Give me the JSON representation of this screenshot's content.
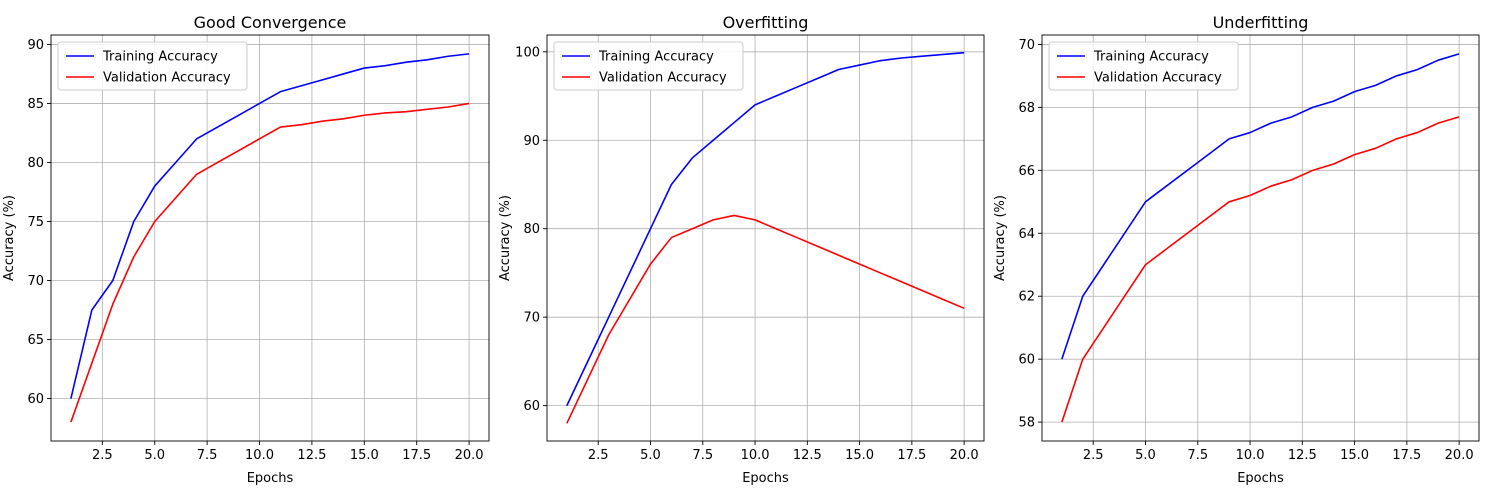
{
  "chart_data": [
    {
      "type": "line",
      "title": "Good Convergence",
      "xlabel": "Epochs",
      "ylabel": "Accuracy (%)",
      "x": [
        1,
        2,
        3,
        4,
        5,
        6,
        7,
        8,
        9,
        10,
        11,
        12,
        13,
        14,
        15,
        16,
        17,
        18,
        19,
        20
      ],
      "series": [
        {
          "name": "Training Accuracy",
          "color": "#0000ff",
          "values": [
            60,
            67.5,
            70,
            75,
            78,
            80,
            82,
            83,
            84,
            85,
            86,
            86.5,
            87,
            87.5,
            88,
            88.2,
            88.5,
            88.7,
            89,
            89.2
          ]
        },
        {
          "name": "Validation Accuracy",
          "color": "#ff0000",
          "values": [
            58,
            63,
            68,
            72,
            75,
            77,
            79,
            80,
            81,
            82,
            83,
            83.2,
            83.5,
            83.7,
            84,
            84.2,
            84.3,
            84.5,
            84.7,
            85
          ]
        }
      ],
      "xlim": [
        0.05,
        20.95
      ],
      "ylim": [
        56.4,
        90.8
      ],
      "xticks": [
        2.5,
        5.0,
        7.5,
        10.0,
        12.5,
        15.0,
        17.5,
        20.0
      ],
      "xtick_labels": [
        "2.5",
        "5.0",
        "7.5",
        "10.0",
        "12.5",
        "15.0",
        "17.5",
        "20.0"
      ],
      "yticks": [
        60,
        65,
        70,
        75,
        80,
        85,
        90
      ],
      "ytick_labels": [
        "60",
        "65",
        "70",
        "75",
        "80",
        "85",
        "90"
      ],
      "grid": true,
      "legend": "upper-left"
    },
    {
      "type": "line",
      "title": "Overfitting",
      "xlabel": "Epochs",
      "ylabel": "Accuracy (%)",
      "x": [
        1,
        2,
        3,
        4,
        5,
        6,
        7,
        8,
        9,
        10,
        11,
        12,
        13,
        14,
        15,
        16,
        17,
        18,
        19,
        20
      ],
      "series": [
        {
          "name": "Training Accuracy",
          "color": "#0000ff",
          "values": [
            60,
            65,
            70,
            75,
            80,
            85,
            88,
            90,
            92,
            94,
            95,
            96,
            97,
            98,
            98.5,
            99,
            99.3,
            99.5,
            99.7,
            99.9
          ]
        },
        {
          "name": "Validation Accuracy",
          "color": "#ff0000",
          "values": [
            58,
            63,
            68,
            72,
            76,
            79,
            80,
            81,
            81.5,
            81,
            80,
            79,
            78,
            77,
            76,
            75,
            74,
            73,
            72,
            71
          ]
        }
      ],
      "xlim": [
        0.05,
        20.95
      ],
      "ylim": [
        56.0,
        101.9
      ],
      "xticks": [
        2.5,
        5.0,
        7.5,
        10.0,
        12.5,
        15.0,
        17.5,
        20.0
      ],
      "xtick_labels": [
        "2.5",
        "5.0",
        "7.5",
        "10.0",
        "12.5",
        "15.0",
        "17.5",
        "20.0"
      ],
      "yticks": [
        60,
        70,
        80,
        90,
        100
      ],
      "ytick_labels": [
        "60",
        "70",
        "80",
        "90",
        "100"
      ],
      "grid": true,
      "legend": "upper-left"
    },
    {
      "type": "line",
      "title": "Underfitting",
      "xlabel": "Epochs",
      "ylabel": "Accuracy (%)",
      "x": [
        1,
        2,
        3,
        4,
        5,
        6,
        7,
        8,
        9,
        10,
        11,
        12,
        13,
        14,
        15,
        16,
        17,
        18,
        19,
        20
      ],
      "series": [
        {
          "name": "Training Accuracy",
          "color": "#0000ff",
          "values": [
            60,
            62,
            63,
            64,
            65,
            65.5,
            66,
            66.5,
            67,
            67.2,
            67.5,
            67.7,
            68,
            68.2,
            68.5,
            68.7,
            69,
            69.2,
            69.5,
            69.7
          ]
        },
        {
          "name": "Validation Accuracy",
          "color": "#ff0000",
          "values": [
            58,
            60,
            61,
            62,
            63,
            63.5,
            64,
            64.5,
            65,
            65.2,
            65.5,
            65.7,
            66,
            66.2,
            66.5,
            66.7,
            67,
            67.2,
            67.5,
            67.7
          ]
        }
      ],
      "xlim": [
        0.05,
        20.95
      ],
      "ylim": [
        57.4,
        70.3
      ],
      "xticks": [
        2.5,
        5.0,
        7.5,
        10.0,
        12.5,
        15.0,
        17.5,
        20.0
      ],
      "xtick_labels": [
        "2.5",
        "5.0",
        "7.5",
        "10.0",
        "12.5",
        "15.0",
        "17.5",
        "20.0"
      ],
      "yticks": [
        58,
        60,
        62,
        64,
        66,
        68,
        70
      ],
      "ytick_labels": [
        "58",
        "60",
        "62",
        "64",
        "66",
        "68",
        "70"
      ],
      "grid": true,
      "legend": "upper-left"
    }
  ]
}
